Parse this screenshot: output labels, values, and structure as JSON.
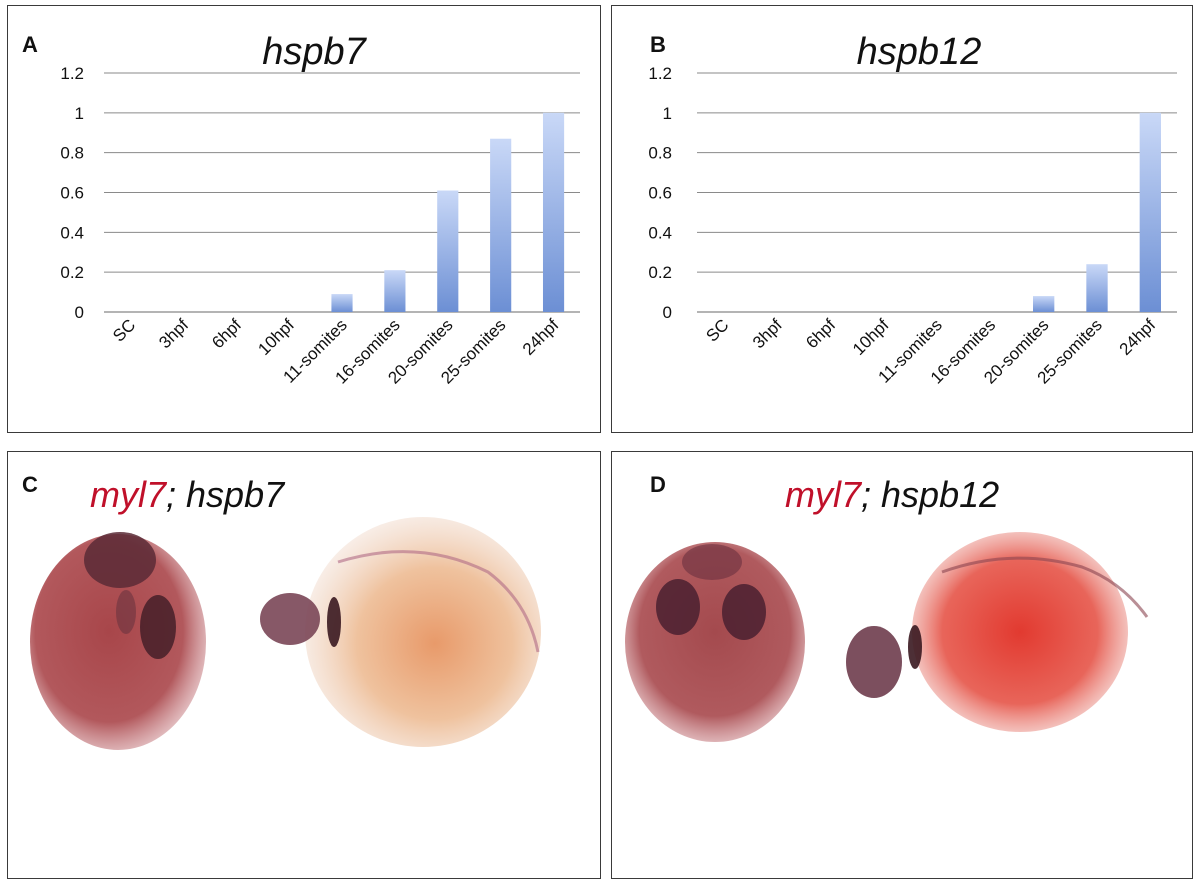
{
  "panels": {
    "a": {
      "letter": "A"
    },
    "b": {
      "letter": "B"
    },
    "c": {
      "letter": "C",
      "title_marker": "myl7",
      "title_sep": ";",
      "title_gene": " hspb7"
    },
    "d": {
      "letter": "D",
      "title_marker": "myl7",
      "title_sep": ";",
      "title_gene": " hspb12"
    }
  },
  "colors": {
    "bar_top": "#c9d8f7",
    "bar_bottom": "#6c8fd4",
    "marker_red": "#c0102a",
    "gridline": "#8a8a8a",
    "stain_red": "#c8323a",
    "stain_purple": "#4a2030"
  },
  "chart_data": [
    {
      "type": "bar",
      "title": "hspb7",
      "categories": [
        "SC",
        "3hpf",
        "6hpf",
        "10hpf",
        "11-somites",
        "16-somites",
        "20-somites",
        "25-somites",
        "24hpf"
      ],
      "values": [
        0,
        0,
        0,
        0,
        0.09,
        0.21,
        0.61,
        0.87,
        1.0
      ],
      "ylim": [
        0,
        1.2
      ],
      "yticks": [
        "0",
        "0.2",
        "0.4",
        "0.6",
        "0.8",
        "1",
        "1.2"
      ],
      "grid": true,
      "xlabel": "",
      "ylabel": ""
    },
    {
      "type": "bar",
      "title": "hspb12",
      "categories": [
        "SC",
        "3hpf",
        "6hpf",
        "10hpf",
        "11-somites",
        "16-somites",
        "20-somites",
        "25-somites",
        "24hpf"
      ],
      "values": [
        0,
        0,
        0,
        0,
        0,
        0,
        0.08,
        0.24,
        1.0
      ],
      "ylim": [
        0,
        1.2
      ],
      "yticks": [
        "0",
        "0.2",
        "0.4",
        "0.6",
        "0.8",
        "1",
        "1.2"
      ],
      "grid": true,
      "xlabel": "",
      "ylabel": ""
    }
  ]
}
